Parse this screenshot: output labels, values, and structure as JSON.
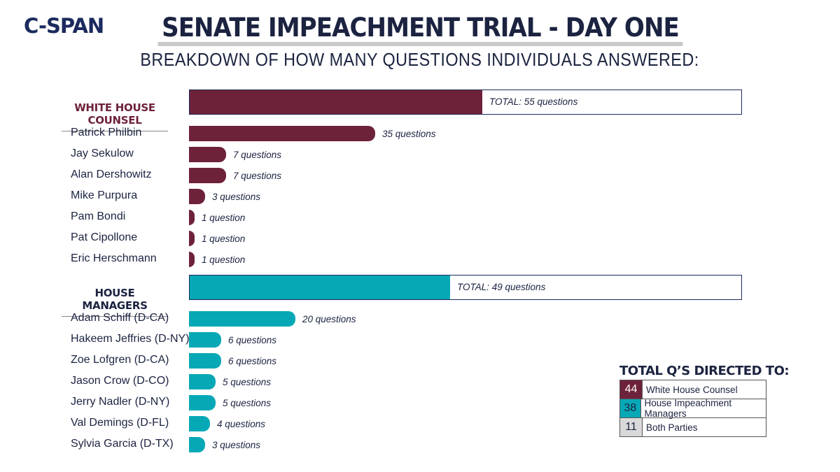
{
  "logo": "C-SPAN",
  "chart_data": {
    "type": "bar",
    "title": "SENATE IMPEACHMENT TRIAL - DAY ONE",
    "subtitle": "BREAKDOWN OF HOW MANY QUESTIONS INDIVIDUALS ANSWERED:",
    "groups": [
      {
        "name": "WHITE HOUSE COUNSEL",
        "color": "#6e2239",
        "total": 55,
        "total_label": "TOTAL: 55 questions",
        "members": [
          {
            "name": "Patrick Philbin",
            "value": 35,
            "label": "35 questions"
          },
          {
            "name": "Jay Sekulow",
            "value": 7,
            "label": "7 questions"
          },
          {
            "name": "Alan Dershowitz",
            "value": 7,
            "label": "7 questions"
          },
          {
            "name": "Mike Purpura",
            "value": 3,
            "label": "3 questions"
          },
          {
            "name": "Pam Bondi",
            "value": 1,
            "label": "1 question"
          },
          {
            "name": "Pat Cipollone",
            "value": 1,
            "label": "1 question"
          },
          {
            "name": "Eric Herschmann",
            "value": 1,
            "label": "1 question"
          }
        ]
      },
      {
        "name": "HOUSE MANAGERS",
        "color": "#06a8b6",
        "total": 49,
        "total_label": "TOTAL: 49 questions",
        "members": [
          {
            "name": "Adam Schiff (D-CA)",
            "value": 20,
            "label": "20 questions"
          },
          {
            "name": "Hakeem Jeffries (D-NY)",
            "value": 6,
            "label": "6 questions"
          },
          {
            "name": "Zoe Lofgren (D-CA)",
            "value": 6,
            "label": "6 questions"
          },
          {
            "name": "Jason Crow (D-CO)",
            "value": 5,
            "label": "5 questions"
          },
          {
            "name": "Jerry Nadler (D-NY)",
            "value": 5,
            "label": "5 questions"
          },
          {
            "name": "Val Demings (D-FL)",
            "value": 4,
            "label": "4 questions"
          },
          {
            "name": "Sylvia Garcia (D-TX)",
            "value": 3,
            "label": "3 questions"
          }
        ]
      }
    ],
    "total_scale_max": 104
  },
  "legend": {
    "title": "TOTAL Q’S DIRECTED TO:",
    "rows": [
      {
        "count": "44",
        "label": "White House Counsel",
        "color": "#6e2239",
        "text_color": "#ffffff"
      },
      {
        "count": "38",
        "label": "House Impeachment Managers",
        "color": "#06a8b6",
        "text_color": "#1b2340"
      },
      {
        "count": "11",
        "label": "Both Parties",
        "color": "#d9d9d9",
        "text_color": "#1b2340"
      }
    ]
  }
}
